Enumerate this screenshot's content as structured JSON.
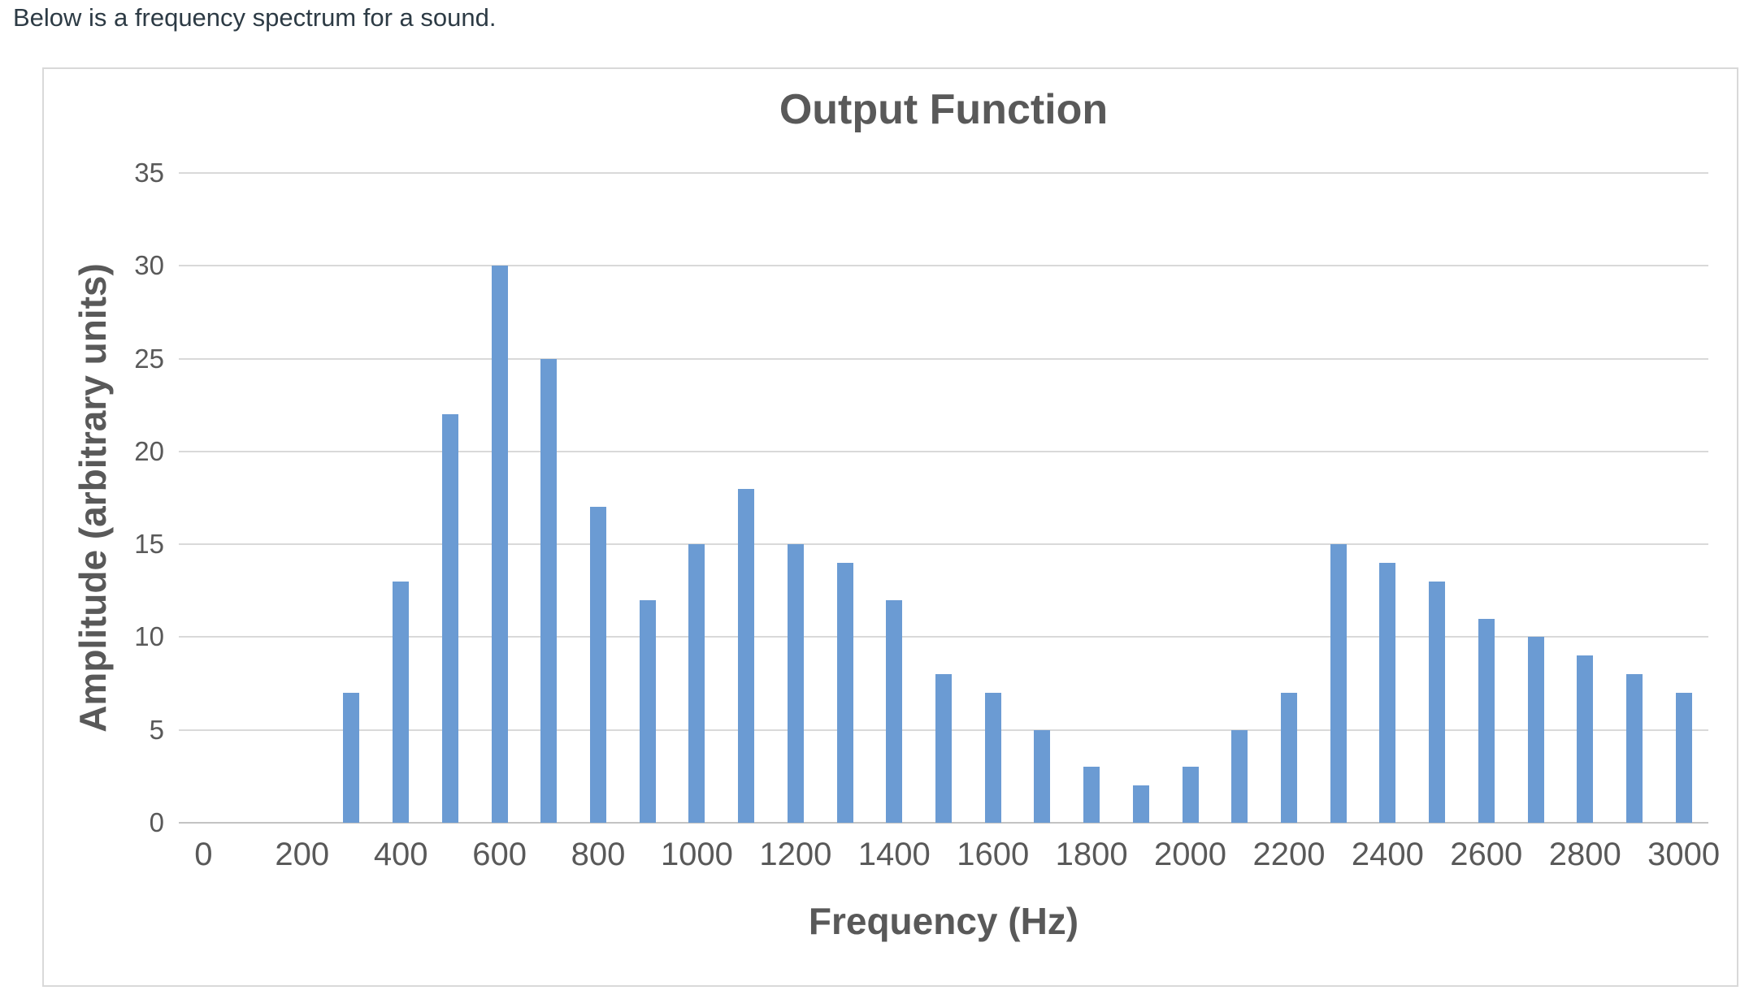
{
  "intro_text": "Below is a frequency spectrum for a sound.",
  "colors": {
    "bar": "#6b9bd3",
    "gridline": "#d9d9d9",
    "zero_line": "#c3c3c3",
    "axis_text": "#595959",
    "title_text": "#595959",
    "intro_text": "#2d3b45",
    "chart_border": "#d9d9d9"
  },
  "chart_data": {
    "type": "bar",
    "title": "Output Function",
    "xlabel": "Frequency (Hz)",
    "ylabel": "Amplitude (arbitrary units)",
    "categories": [
      0,
      100,
      200,
      300,
      400,
      500,
      600,
      700,
      800,
      900,
      1000,
      1100,
      1200,
      1300,
      1400,
      1500,
      1600,
      1700,
      1800,
      1900,
      2000,
      2100,
      2200,
      2300,
      2400,
      2500,
      2600,
      2700,
      2800,
      2900,
      3000
    ],
    "values": [
      0,
      0,
      0,
      7,
      13,
      22,
      30,
      25,
      17,
      12,
      15,
      18,
      15,
      14,
      12,
      8,
      7,
      5,
      3,
      2,
      3,
      5,
      7,
      15,
      14,
      13,
      11,
      10,
      9,
      8,
      7
    ],
    "ylim": [
      0,
      35
    ],
    "ytick_step": 5,
    "ytick_labels": [
      "0",
      "5",
      "10",
      "15",
      "20",
      "25",
      "30",
      "35"
    ],
    "xtick_label_step": 200,
    "xtick_labels": [
      "0",
      "200",
      "400",
      "600",
      "800",
      "1000",
      "1200",
      "1400",
      "1600",
      "1800",
      "2000",
      "2200",
      "2400",
      "2600",
      "2800",
      "3000"
    ],
    "grid": "horizontal",
    "legend": "none"
  }
}
